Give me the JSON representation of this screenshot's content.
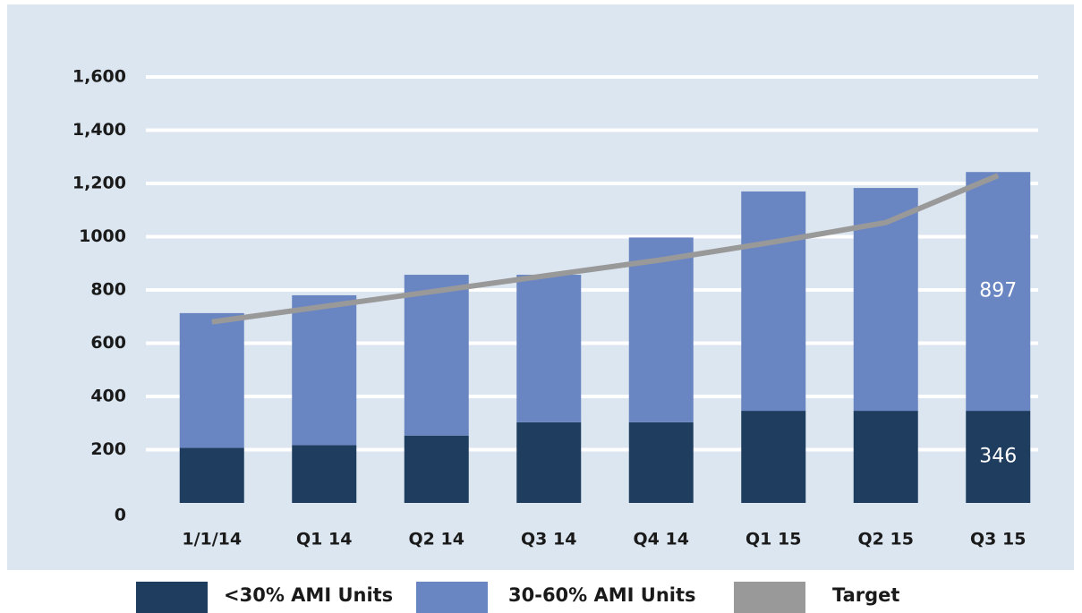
{
  "chart_data": {
    "type": "bar",
    "categories": [
      "1/1/14",
      "Q1 14",
      "Q2 14",
      "Q3 14",
      "Q4 14",
      "Q1 15",
      "Q2 15",
      "Q3 15"
    ],
    "series": [
      {
        "name": "<30% AMI Units",
        "color": "#1f3d5f",
        "values": [
          207,
          217,
          253,
          303,
          303,
          346,
          346,
          346
        ],
        "value_labels": [
          null,
          null,
          null,
          null,
          null,
          null,
          null,
          "346"
        ]
      },
      {
        "name": "30-60% AMI Units",
        "color": "#6a86c2",
        "values": [
          506,
          563,
          604,
          554,
          694,
          824,
          837,
          897
        ],
        "value_labels": [
          null,
          null,
          null,
          null,
          null,
          null,
          null,
          "897"
        ]
      },
      {
        "name": "Target",
        "type": "line",
        "color": "#999999",
        "values": [
          680,
          738,
          796,
          855,
          913,
          980,
          1053,
          1230
        ]
      }
    ],
    "stacked": true,
    "ylim": [
      0,
      1600
    ],
    "yticks": [
      0,
      200,
      400,
      600,
      800,
      1000,
      {
        "value": 1200,
        "label": "1,200"
      },
      {
        "value": 1400,
        "label": "1,400"
      },
      {
        "value": 1600,
        "label": "1,600"
      }
    ],
    "grid": true,
    "legend": "bottom"
  }
}
